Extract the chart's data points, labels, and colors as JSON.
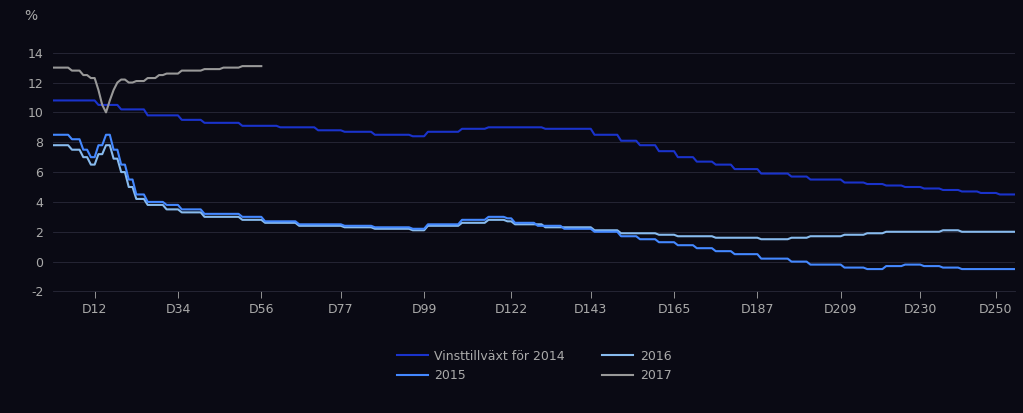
{
  "ylabel": "%",
  "fig_bg_color": "#0a0a14",
  "plot_bg_color": "#0a0a14",
  "grid_color": "#2a2a3a",
  "text_color": "#aaaaaa",
  "ylim": [
    -2,
    16
  ],
  "yticks": [
    -2,
    0,
    2,
    4,
    6,
    8,
    10,
    12,
    14
  ],
  "xtick_labels": [
    "D12",
    "D34",
    "D56",
    "D77",
    "D99",
    "D122",
    "D143",
    "D165",
    "D187",
    "D209",
    "D230",
    "D250"
  ],
  "xtick_positions": [
    12,
    34,
    56,
    77,
    99,
    122,
    143,
    165,
    187,
    209,
    230,
    250
  ],
  "series": {
    "2014": {
      "color": "#1a33cc",
      "linewidth": 1.5,
      "label": "Vinsttillväxt för 2014"
    },
    "2015": {
      "color": "#4488ff",
      "linewidth": 1.5,
      "label": "2015"
    },
    "2016": {
      "color": "#88bbee",
      "linewidth": 1.5,
      "label": "2016"
    },
    "2017": {
      "color": "#999999",
      "linewidth": 1.5,
      "label": "2017"
    }
  },
  "legend_labels_col1": [
    "Vinsttillväxt för 2014",
    "2016"
  ],
  "legend_labels_col2": [
    "2015",
    "2017"
  ]
}
